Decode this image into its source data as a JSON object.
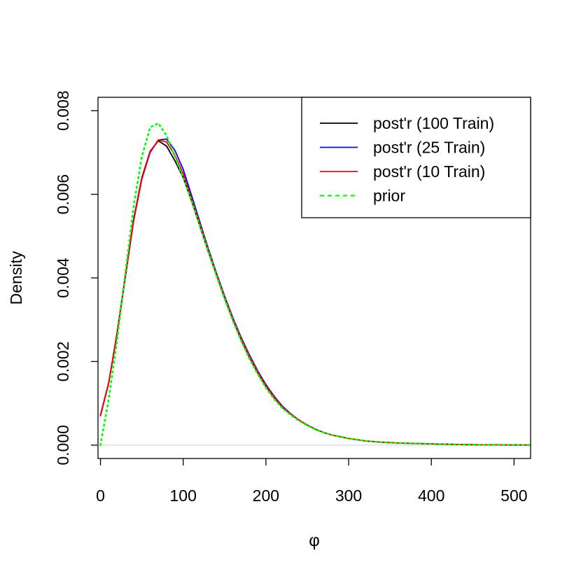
{
  "chart_data": {
    "type": "line",
    "title": "",
    "xlabel": "φ",
    "ylabel": "Density",
    "xlim": [
      -3,
      520
    ],
    "ylim": [
      -0.00032,
      0.00832
    ],
    "x_ticks": [
      0,
      100,
      200,
      300,
      400,
      500
    ],
    "x_tick_labels": [
      "0",
      "100",
      "200",
      "300",
      "400",
      "500"
    ],
    "y_ticks": [
      0,
      0.002,
      0.004,
      0.006,
      0.008
    ],
    "y_tick_labels": [
      "0.000",
      "0.002",
      "0.004",
      "0.006",
      "0.008"
    ],
    "grid": false,
    "zero_line": true,
    "legend_position": "top-right",
    "series": [
      {
        "name": "post'r (100 Train)",
        "color": "#000000",
        "dash": "solid",
        "x": [
          0,
          10,
          20,
          30,
          40,
          50,
          60,
          70,
          80,
          90,
          100,
          110,
          120,
          130,
          140,
          150,
          160,
          170,
          180,
          190,
          200,
          210,
          220,
          230,
          240,
          250,
          260,
          270,
          280,
          300,
          320,
          340,
          360,
          380,
          400,
          420,
          440,
          460,
          480,
          500,
          520
        ],
        "y": [
          0.00072,
          0.0015,
          0.00268,
          0.00405,
          0.0054,
          0.0064,
          0.00703,
          0.00728,
          0.00715,
          0.0068,
          0.0064,
          0.00585,
          0.00525,
          0.00465,
          0.00408,
          0.00352,
          0.003,
          0.00252,
          0.0021,
          0.00173,
          0.0014,
          0.00113,
          0.0009,
          0.00074,
          0.0006,
          0.00048,
          0.00038,
          0.0003,
          0.00024,
          0.00016,
          0.0001,
          7e-05,
          5e-05,
          4e-05,
          3e-05,
          2e-05,
          1.2e-05,
          8e-06,
          5e-06,
          3e-06,
          2e-06
        ]
      },
      {
        "name": "post'r (25 Train)",
        "color": "#0000ff",
        "dash": "solid",
        "x": [
          0,
          10,
          20,
          30,
          40,
          50,
          60,
          70,
          80,
          90,
          100,
          110,
          120,
          130,
          140,
          150,
          160,
          170,
          180,
          190,
          200,
          210,
          220,
          230,
          240,
          250,
          260,
          270,
          280,
          300,
          320,
          340,
          360,
          380,
          400,
          420,
          440,
          460,
          480,
          500,
          520
        ],
        "y": [
          0.0007,
          0.00148,
          0.00265,
          0.004,
          0.00535,
          0.00636,
          0.007,
          0.0073,
          0.00732,
          0.00705,
          0.0066,
          0.00598,
          0.00535,
          0.00472,
          0.00413,
          0.00357,
          0.00305,
          0.00258,
          0.00216,
          0.00178,
          0.00145,
          0.00117,
          0.00093,
          0.00075,
          0.0006,
          0.00048,
          0.00038,
          0.0003,
          0.00024,
          0.00016,
          0.0001,
          7e-05,
          5e-05,
          4e-05,
          3e-05,
          2e-05,
          1.2e-05,
          8e-06,
          5e-06,
          3e-06,
          2e-06
        ]
      },
      {
        "name": "post'r (10 Train)",
        "color": "#ff0000",
        "dash": "solid",
        "x": [
          0,
          10,
          20,
          30,
          40,
          50,
          60,
          70,
          80,
          90,
          100,
          110,
          120,
          130,
          140,
          150,
          160,
          170,
          180,
          190,
          200,
          210,
          220,
          230,
          240,
          250,
          260,
          270,
          280,
          300,
          320,
          340,
          360,
          380,
          400,
          420,
          440,
          460,
          480,
          500,
          520
        ],
        "y": [
          0.00071,
          0.00149,
          0.00266,
          0.00402,
          0.00537,
          0.00638,
          0.00702,
          0.0073,
          0.00725,
          0.00693,
          0.0065,
          0.0059,
          0.0053,
          0.00468,
          0.0041,
          0.00354,
          0.00302,
          0.00255,
          0.00213,
          0.00175,
          0.00142,
          0.00115,
          0.00091,
          0.00074,
          0.0006,
          0.00048,
          0.00038,
          0.0003,
          0.00024,
          0.00016,
          0.0001,
          7e-05,
          5e-05,
          4e-05,
          3e-05,
          2e-05,
          1.2e-05,
          8e-06,
          5e-06,
          3e-06,
          2e-06
        ]
      },
      {
        "name": "prior",
        "color": "#00ff00",
        "dash": "dotted",
        "x": [
          0,
          10,
          20,
          30,
          40,
          50,
          60,
          70,
          80,
          90,
          100,
          110,
          120,
          130,
          140,
          150,
          160,
          170,
          180,
          190,
          200,
          210,
          220,
          230,
          240,
          250,
          260,
          270,
          280,
          300,
          320,
          340,
          360,
          380,
          400,
          420,
          440,
          460,
          480,
          500,
          520
        ],
        "y": [
          0.0,
          0.0011,
          0.0025,
          0.0041,
          0.0057,
          0.0069,
          0.0076,
          0.0077,
          0.0074,
          0.0069,
          0.0064,
          0.00585,
          0.00525,
          0.00465,
          0.00407,
          0.0035,
          0.00298,
          0.0025,
          0.00207,
          0.0017,
          0.00137,
          0.0011,
          0.00088,
          0.00072,
          0.00058,
          0.00047,
          0.00037,
          0.0003,
          0.00024,
          0.00016,
          0.0001,
          7e-05,
          5e-05,
          4e-05,
          3e-05,
          2e-05,
          1.2e-05,
          8e-06,
          5e-06,
          3e-06,
          2e-06
        ]
      }
    ]
  }
}
